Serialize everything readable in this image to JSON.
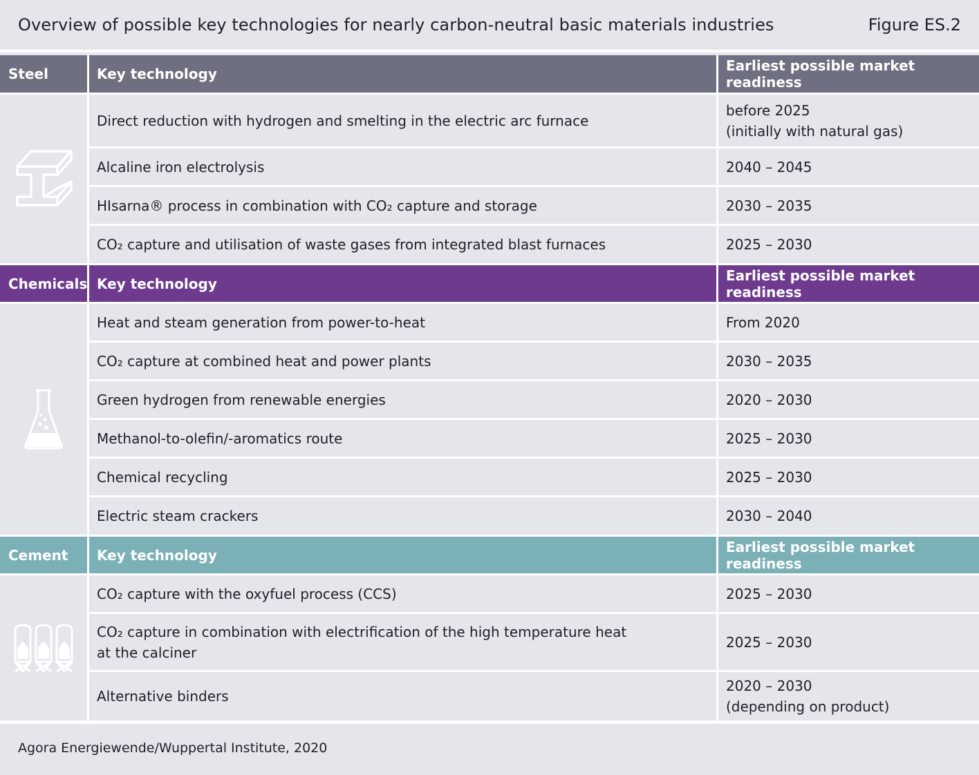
{
  "header": {
    "title": "Overview of possible key technologies for nearly carbon-neutral basic materials industries",
    "figure_label": "Figure ES.2"
  },
  "sections": [
    {
      "name": "Steel",
      "col_technology": "Key technology",
      "col_readiness": "Earliest possible market readiness",
      "color": "#6e6f80",
      "icon": "steel-beam-icon",
      "rows": [
        {
          "technology": "Direct reduction with hydrogen and smelting in the electric arc furnace",
          "readiness": "before 2025\n(initially with natural gas)"
        },
        {
          "technology": "Alcaline iron electrolysis",
          "readiness": "2040 – 2045"
        },
        {
          "technology": "HIsarna® process in combination with CO₂ capture and storage",
          "readiness": "2030 – 2035"
        },
        {
          "technology": "CO₂ capture and utilisation of waste gases from integrated blast furnaces",
          "readiness": "2025 – 2030"
        }
      ]
    },
    {
      "name": "Chemicals",
      "col_technology": "Key technology",
      "col_readiness": "Earliest possible market readiness",
      "color": "#6e3a8e",
      "icon": "flask-icon",
      "rows": [
        {
          "technology": "Heat and steam generation from power-to-heat",
          "readiness": "From 2020"
        },
        {
          "technology": "CO₂ capture at combined heat and power plants",
          "readiness": "2030 – 2035"
        },
        {
          "technology": "Green hydrogen from renewable energies",
          "readiness": "2020 – 2030"
        },
        {
          "technology": "Methanol-to-olefin/-aromatics route",
          "readiness": "2025 – 2030"
        },
        {
          "technology": "Chemical recycling",
          "readiness": "2025 – 2030"
        },
        {
          "technology": "Electric steam crackers",
          "readiness": "2030 – 2040"
        }
      ]
    },
    {
      "name": "Cement",
      "col_technology": "Key technology",
      "col_readiness": "Earliest possible market readiness",
      "color": "#7bb0b6",
      "icon": "cement-silo-icon",
      "rows": [
        {
          "technology": "CO₂ capture with the oxyfuel process (CCS)",
          "readiness": "2025 – 2030"
        },
        {
          "technology": "CO₂ capture in combination with electrification of the high temperature heat\nat the calciner",
          "readiness": "2025 – 2030"
        },
        {
          "technology": "Alternative binders",
          "readiness": "2020 – 2030\n(depending on product)"
        }
      ]
    }
  ],
  "source": "Agora Energiewende/Wuppertal Institute, 2020"
}
